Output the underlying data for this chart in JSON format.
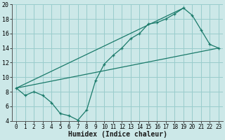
{
  "xlabel": "Humidex (Indice chaleur)",
  "bg_color": "#cce8e8",
  "grid_color": "#99cccc",
  "line_color": "#1a7a6a",
  "xlim": [
    -0.5,
    23.5
  ],
  "ylim": [
    4,
    20
  ],
  "xticks": [
    0,
    1,
    2,
    3,
    4,
    5,
    6,
    7,
    8,
    9,
    10,
    11,
    12,
    13,
    14,
    15,
    16,
    17,
    18,
    19,
    20,
    21,
    22,
    23
  ],
  "yticks": [
    4,
    6,
    8,
    10,
    12,
    14,
    16,
    18,
    20
  ],
  "line1_x": [
    0,
    1,
    2,
    3,
    4,
    5,
    6,
    7,
    8,
    9,
    10,
    11,
    12,
    13,
    14,
    15,
    16,
    17,
    18,
    19,
    20,
    21,
    22,
    23
  ],
  "line1_y": [
    8.5,
    7.5,
    8.0,
    7.5,
    6.5,
    5.0,
    4.7,
    4.1,
    5.5,
    9.5,
    11.8,
    13.0,
    14.0,
    15.3,
    16.0,
    17.3,
    17.5,
    18.0,
    18.7,
    19.5,
    18.5,
    16.5,
    14.5,
    14.0
  ],
  "line2_x": [
    0,
    23
  ],
  "line2_y": [
    8.5,
    14.0
  ],
  "line3_x": [
    0,
    19
  ],
  "line3_y": [
    8.5,
    19.5
  ]
}
